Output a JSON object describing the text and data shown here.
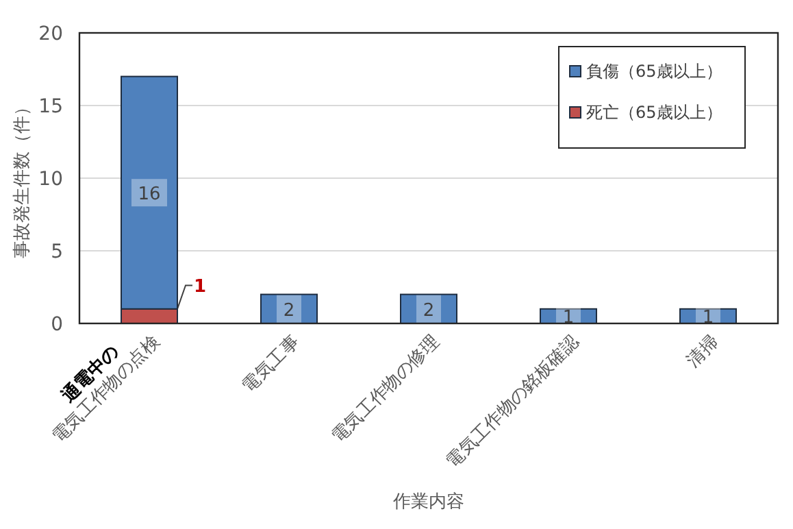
{
  "chart_data": {
    "type": "bar",
    "stacked": true,
    "ylabel": "事故発生件数（件）",
    "xlabel": "作業内容",
    "categories": [
      "通電中の\n電気工作物の点検",
      "電気工事",
      "電気工作物の修理",
      "電気工作物の銘板確認",
      "清掃"
    ],
    "series": [
      {
        "name": "死亡（65歳以上）",
        "color": "#c0504d",
        "values": [
          1,
          0,
          0,
          0,
          0
        ],
        "value_labels": [
          "1",
          null,
          null,
          null,
          null
        ]
      },
      {
        "name": "負傷（65歳以上）",
        "color": "#4f81bd",
        "values": [
          16,
          2,
          2,
          1,
          1
        ],
        "value_labels": [
          "16",
          "2",
          "2",
          "1",
          "1"
        ]
      }
    ],
    "ylim": [
      0,
      20
    ],
    "yticks": [
      0,
      5,
      10,
      15,
      20
    ],
    "grid": "y",
    "legend": "top right"
  }
}
